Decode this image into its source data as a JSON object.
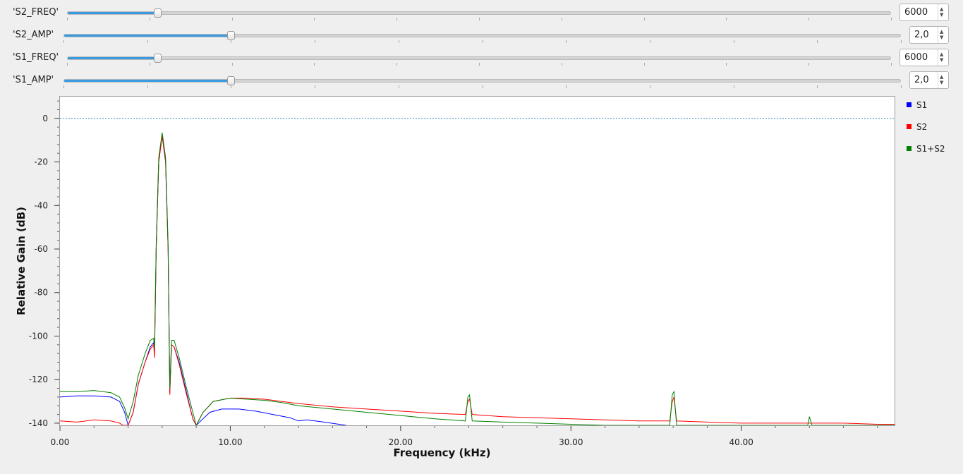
{
  "controls": [
    {
      "label": "'S2_FREQ'",
      "value": "6000",
      "fraction": 0.11
    },
    {
      "label": "'S2_AMP'",
      "value": "2,0",
      "fraction": 0.2
    },
    {
      "label": "'S1_FREQ'",
      "value": "6000",
      "fraction": 0.11
    },
    {
      "label": "'S1_AMP'",
      "value": "2,0",
      "fraction": 0.2
    }
  ],
  "icons": {
    "up": "spin-up-arrow-icon",
    "down": "spin-down-arrow-icon"
  },
  "colors": {
    "S1": "#0000ff",
    "S2": "#ff0000",
    "S1+S2": "#008000",
    "slider": "#3a9be0",
    "reference": "#2b7fb8"
  },
  "chart_data": {
    "type": "line",
    "xlabel": "Frequency (kHz)",
    "ylabel": "Relative Gain (dB)",
    "xlim": [
      0,
      49
    ],
    "ylim": [
      -141,
      10
    ],
    "xticks": [
      0,
      10,
      20,
      30,
      40
    ],
    "xtick_labels": [
      "0.00",
      "10.00",
      "20.00",
      "30.00",
      "40.00"
    ],
    "yticks": [
      0,
      -20,
      -40,
      -60,
      -80,
      -100,
      -120,
      -140
    ],
    "ytick_labels": [
      "0",
      "-20",
      "-40",
      "-60",
      "-80",
      "-100",
      "-120",
      "-140"
    ],
    "reference_line": 0,
    "legend_position": "right",
    "series": [
      {
        "name": "S1",
        "points": [
          [
            0,
            -128
          ],
          [
            1,
            -127.5
          ],
          [
            2,
            -127.5
          ],
          [
            3,
            -128
          ],
          [
            3.5,
            -130
          ],
          [
            3.8,
            -135
          ],
          [
            4,
            -141
          ],
          [
            4.3,
            -135
          ],
          [
            4.6,
            -122
          ],
          [
            5,
            -112
          ],
          [
            5.3,
            -105
          ],
          [
            5.5,
            -103
          ],
          [
            5.55,
            -108
          ],
          [
            5.65,
            -60
          ],
          [
            5.8,
            -20
          ],
          [
            6,
            -8
          ],
          [
            6.2,
            -20
          ],
          [
            6.35,
            -60
          ],
          [
            6.45,
            -126
          ],
          [
            6.55,
            -104
          ],
          [
            6.7,
            -105
          ],
          [
            7,
            -112
          ],
          [
            7.4,
            -125
          ],
          [
            7.8,
            -138
          ],
          [
            8,
            -141
          ],
          [
            8.4,
            -138
          ],
          [
            8.8,
            -135
          ],
          [
            9.5,
            -133.5
          ],
          [
            10.5,
            -133.5
          ],
          [
            11.5,
            -134.5
          ],
          [
            12.5,
            -136
          ],
          [
            13.5,
            -137.5
          ],
          [
            14,
            -139
          ],
          [
            14.5,
            -138.5
          ],
          [
            15.5,
            -139.5
          ],
          [
            16.8,
            -141
          ]
        ]
      },
      {
        "name": "S2",
        "points": [
          [
            0,
            -139
          ],
          [
            1,
            -139.5
          ],
          [
            2,
            -138.5
          ],
          [
            3,
            -139
          ],
          [
            3.5,
            -140
          ],
          [
            3.7,
            -141
          ],
          [
            4,
            -141
          ],
          [
            4.3,
            -135
          ],
          [
            4.6,
            -122
          ],
          [
            5,
            -112
          ],
          [
            5.3,
            -106
          ],
          [
            5.5,
            -104
          ],
          [
            5.55,
            -110
          ],
          [
            5.65,
            -60
          ],
          [
            5.8,
            -20
          ],
          [
            6,
            -8
          ],
          [
            6.2,
            -20
          ],
          [
            6.35,
            -60
          ],
          [
            6.45,
            -127
          ],
          [
            6.55,
            -104
          ],
          [
            6.7,
            -105
          ],
          [
            7,
            -113
          ],
          [
            7.4,
            -126
          ],
          [
            7.8,
            -138
          ],
          [
            8,
            -141
          ],
          [
            8.4,
            -135
          ],
          [
            9,
            -130
          ],
          [
            10,
            -128.5
          ],
          [
            11,
            -128.5
          ],
          [
            12,
            -129
          ],
          [
            13,
            -130
          ],
          [
            14,
            -131
          ],
          [
            16,
            -132.5
          ],
          [
            18,
            -133.5
          ],
          [
            20,
            -134.5
          ],
          [
            22,
            -135.5
          ],
          [
            23.8,
            -136
          ],
          [
            23.95,
            -130
          ],
          [
            24.05,
            -129
          ],
          [
            24.2,
            -136
          ],
          [
            26,
            -137
          ],
          [
            28,
            -137.5
          ],
          [
            30,
            -138
          ],
          [
            32,
            -138.5
          ],
          [
            34,
            -139
          ],
          [
            35.8,
            -139
          ],
          [
            35.95,
            -130
          ],
          [
            36.05,
            -128
          ],
          [
            36.2,
            -139
          ],
          [
            38,
            -139.5
          ],
          [
            40,
            -140
          ],
          [
            42,
            -140
          ],
          [
            44,
            -140
          ],
          [
            46,
            -140
          ],
          [
            48,
            -140.5
          ],
          [
            49,
            -140.5
          ]
        ]
      },
      {
        "name": "S1+S2",
        "points": [
          [
            0,
            -125.5
          ],
          [
            1,
            -125.5
          ],
          [
            2,
            -125
          ],
          [
            3,
            -126
          ],
          [
            3.5,
            -128
          ],
          [
            3.8,
            -133
          ],
          [
            4,
            -138
          ],
          [
            4.3,
            -130
          ],
          [
            4.6,
            -118
          ],
          [
            5,
            -108
          ],
          [
            5.3,
            -102
          ],
          [
            5.5,
            -101
          ],
          [
            5.55,
            -106
          ],
          [
            5.65,
            -58
          ],
          [
            5.8,
            -18
          ],
          [
            6,
            -6.5
          ],
          [
            6.2,
            -18
          ],
          [
            6.35,
            -58
          ],
          [
            6.45,
            -124
          ],
          [
            6.55,
            -102
          ],
          [
            6.7,
            -102
          ],
          [
            7,
            -110
          ],
          [
            7.4,
            -123
          ],
          [
            7.8,
            -135
          ],
          [
            8,
            -141
          ],
          [
            8.4,
            -135
          ],
          [
            9,
            -130
          ],
          [
            10,
            -128.5
          ],
          [
            11,
            -129
          ],
          [
            12,
            -129.5
          ],
          [
            13,
            -130.5
          ],
          [
            14,
            -132
          ],
          [
            16,
            -133.5
          ],
          [
            18,
            -135
          ],
          [
            20,
            -136.5
          ],
          [
            22,
            -138
          ],
          [
            23.8,
            -139
          ],
          [
            23.95,
            -128
          ],
          [
            24.05,
            -127
          ],
          [
            24.2,
            -139
          ],
          [
            26,
            -139.5
          ],
          [
            28,
            -140
          ],
          [
            30,
            -140.5
          ],
          [
            32,
            -141
          ],
          [
            34,
            -141
          ],
          [
            35.8,
            -141
          ],
          [
            35.95,
            -127
          ],
          [
            36.05,
            -125.5
          ],
          [
            36.2,
            -141
          ],
          [
            38,
            -141
          ],
          [
            40,
            -141
          ],
          [
            42,
            -141
          ],
          [
            43.9,
            -141
          ],
          [
            44,
            -137
          ],
          [
            44.15,
            -141
          ],
          [
            46,
            -141
          ],
          [
            48,
            -141
          ],
          [
            49,
            -141
          ]
        ]
      }
    ]
  }
}
